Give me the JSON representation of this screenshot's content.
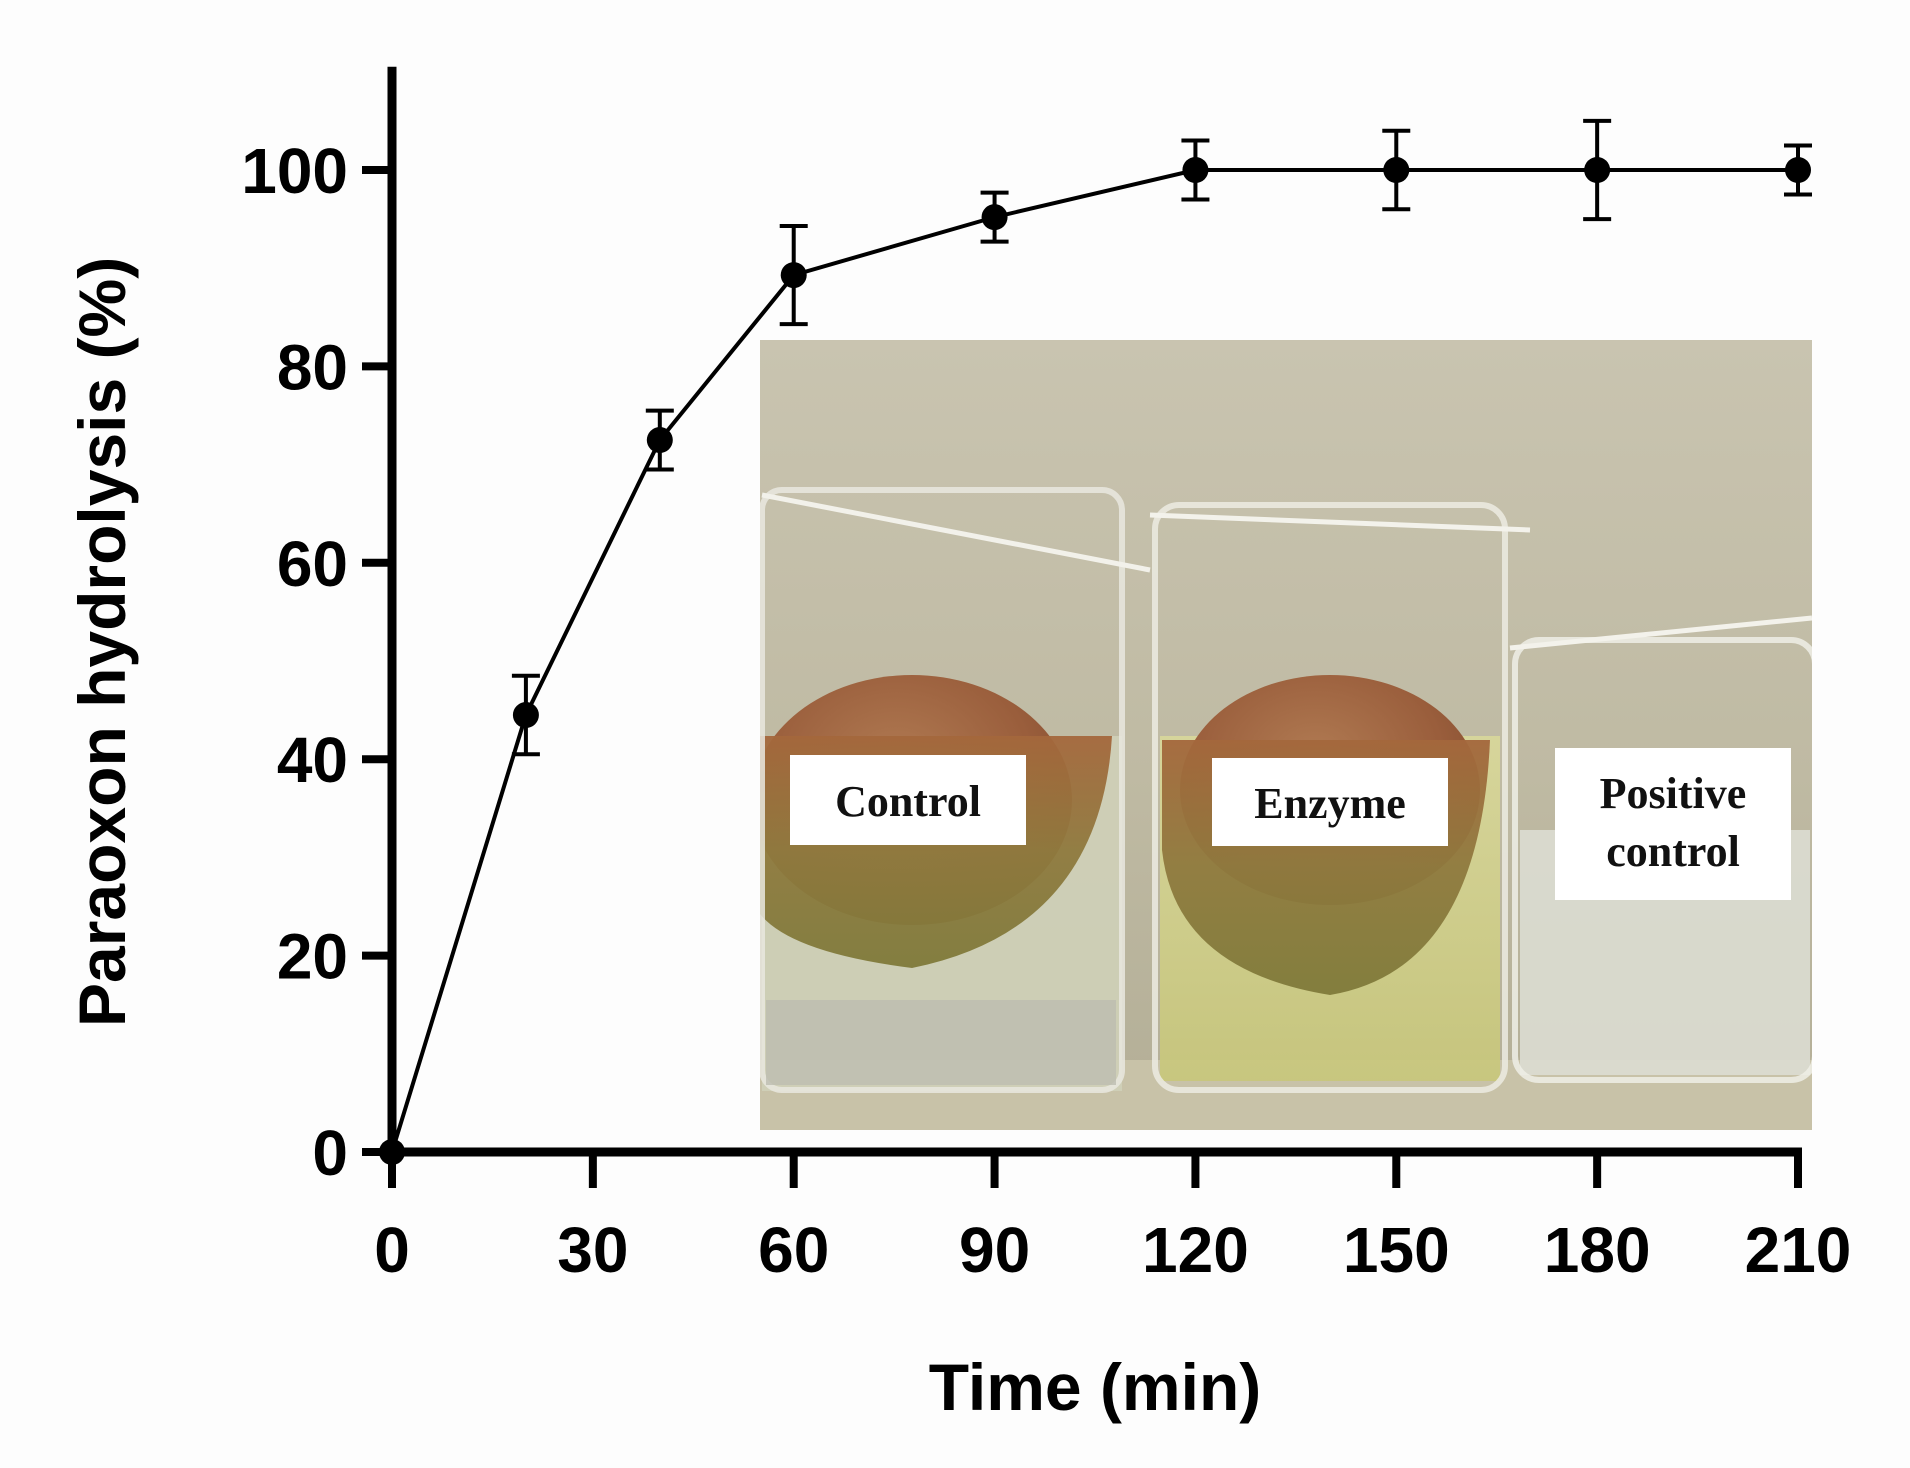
{
  "chart_data": {
    "type": "line",
    "xlabel": "Time (min)",
    "ylabel": "Paraoxon hydrolysis (%)",
    "x_ticks": [
      0,
      30,
      60,
      90,
      120,
      150,
      180,
      210
    ],
    "y_ticks": [
      0,
      20,
      40,
      60,
      80,
      100
    ],
    "xlim": [
      0,
      210
    ],
    "ylim": [
      0,
      110
    ],
    "grid": false,
    "series": [
      {
        "x": [
          0,
          20,
          40,
          60,
          90,
          120,
          150,
          180,
          210
        ],
        "y": [
          0,
          44.5,
          72.5,
          89.3,
          95.2,
          100,
          100,
          100,
          100
        ],
        "error": [
          0,
          4.0,
          3.0,
          5.0,
          2.5,
          3.0,
          4.0,
          5.0,
          2.5
        ]
      }
    ],
    "color": "#000000"
  },
  "inset": {
    "labels": [
      "Control",
      "Enzyme",
      "Positive control"
    ]
  }
}
